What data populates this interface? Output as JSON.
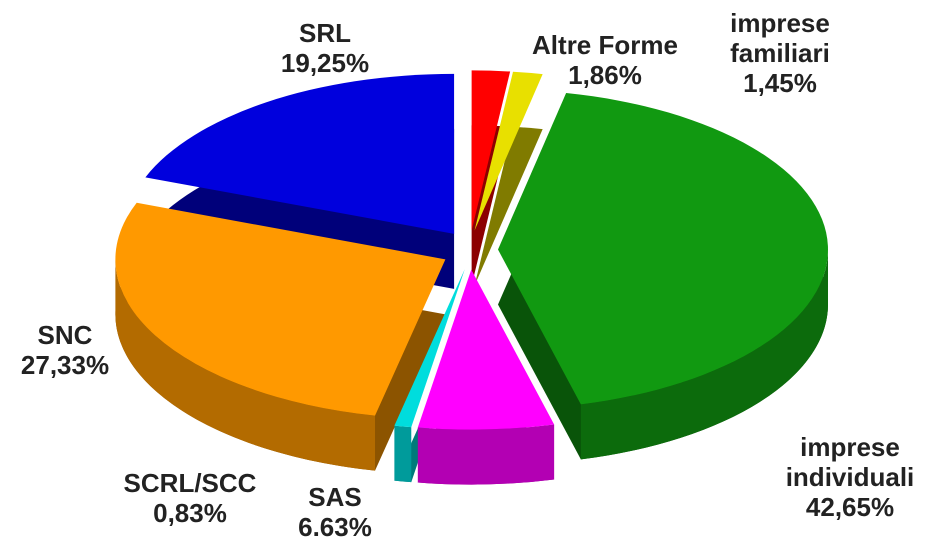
{
  "chart_data": {
    "type": "pie",
    "categories": [
      "Altre Forme",
      "imprese familiari",
      "imprese individuali",
      "SAS",
      "SCRL/SCC",
      "SNC",
      "SRL"
    ],
    "values": [
      1.86,
      1.45,
      42.65,
      6.63,
      0.83,
      27.33,
      19.25
    ],
    "value_labels": [
      "1,86%",
      "1,45%",
      "42,65%",
      "6.63%",
      "0,83%",
      "27,33%",
      "19,25%"
    ],
    "colors": [
      "#ff0000",
      "#e8e000",
      "#119911",
      "#ff00ff",
      "#00dddd",
      "#ff9900",
      "#0000dd"
    ]
  }
}
